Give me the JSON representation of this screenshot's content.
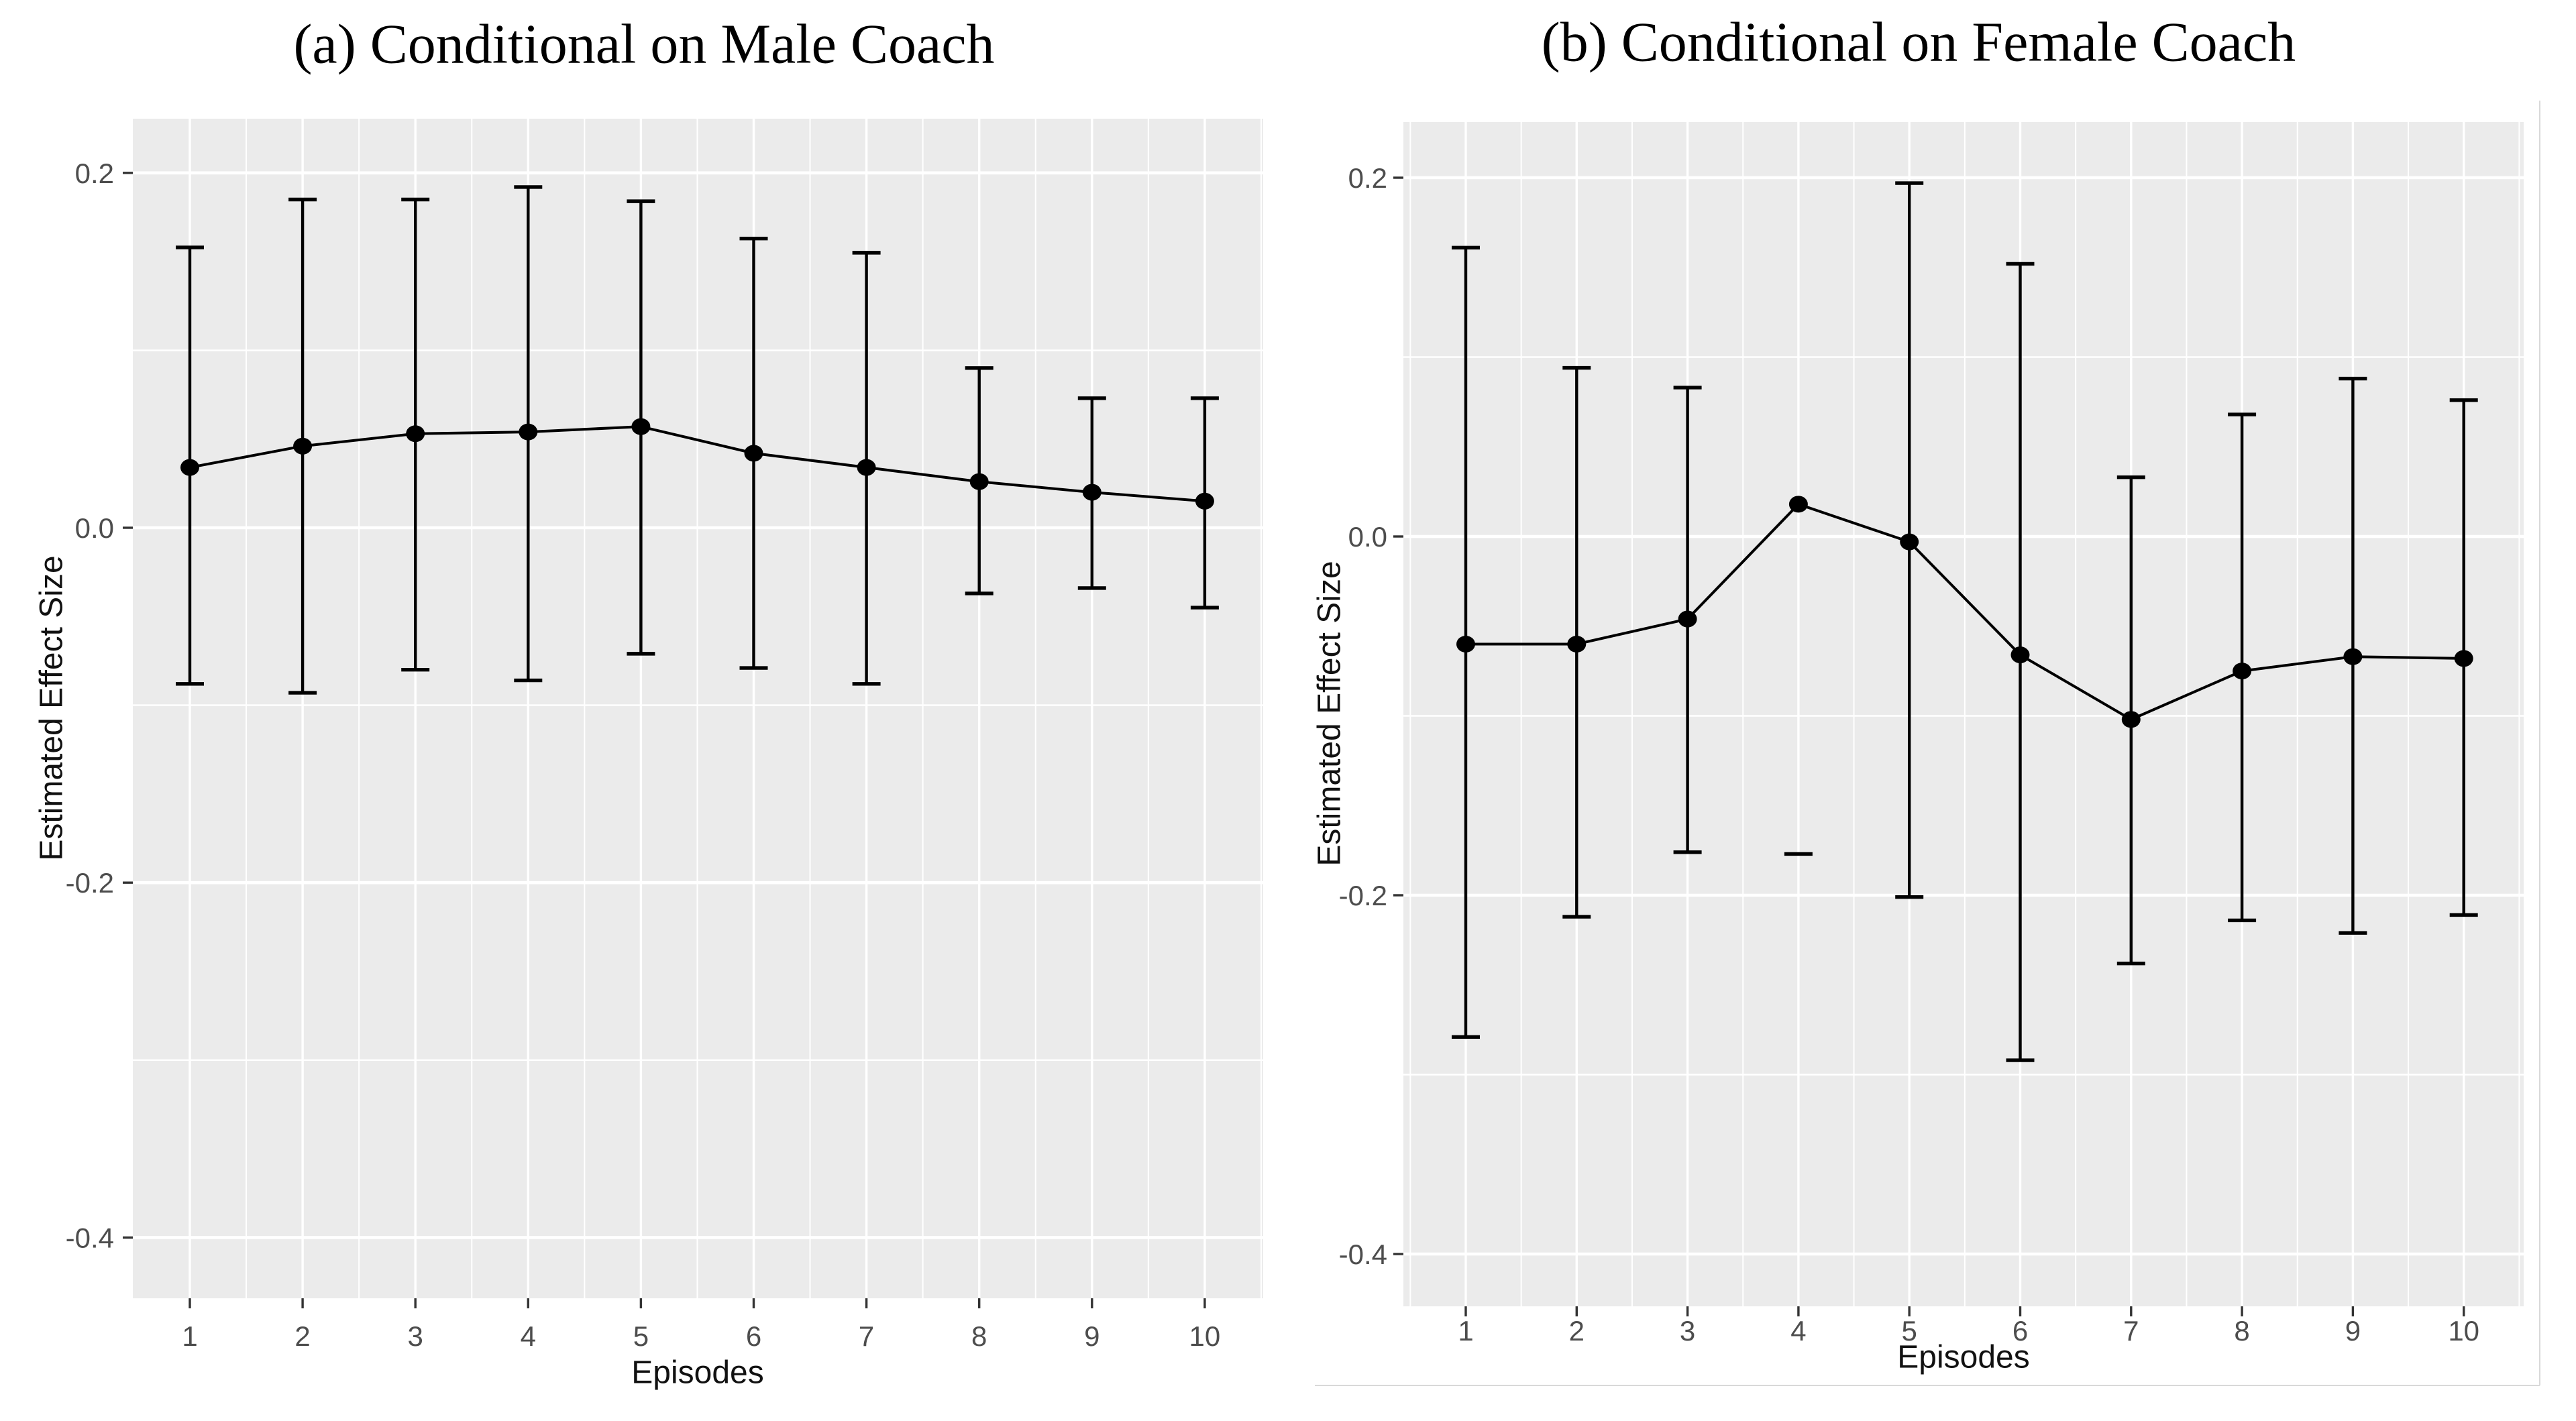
{
  "figure": {
    "background_color": "#FFFFFF",
    "panel_background_color": "#EBEBEB",
    "grid_color": "#FFFFFF",
    "data_color": "#000000",
    "tick_mark_color": "#333333",
    "tick_label_color": "#4D4D4D",
    "axis_title_color": "#111111",
    "title_color": "#000000",
    "frame_edge_color": "#D9D9D9"
  },
  "chart_data": [
    {
      "type": "line",
      "title": "(a) Conditional on Male Coach",
      "xlabel": "Episodes",
      "ylabel": "Estimated Effect Size",
      "x": [
        1,
        2,
        3,
        4,
        5,
        6,
        7,
        8,
        9,
        10
      ],
      "x_tick_labels": [
        "1",
        "2",
        "3",
        "4",
        "5",
        "6",
        "7",
        "8",
        "9",
        "10"
      ],
      "y_ticks": [
        0.2,
        0.0,
        -0.2,
        -0.4
      ],
      "y_tick_labels": [
        "0.2",
        "0.0",
        "-0.2",
        "-0.4"
      ],
      "y_minor_ticks": [
        0.1,
        -0.1,
        -0.3
      ],
      "ylim": [
        -0.43,
        0.22
      ],
      "grid": true,
      "legend": false,
      "marker": "point-with-error-bars",
      "series": [
        {
          "name": "estimated effect size",
          "values": [
            0.034,
            0.046,
            0.053,
            0.054,
            0.057,
            0.042,
            0.034,
            0.026,
            0.02,
            0.015
          ],
          "ci_upper": [
            0.158,
            0.185,
            0.185,
            0.192,
            0.184,
            0.163,
            0.155,
            0.09,
            0.073,
            0.073
          ],
          "ci_lower": [
            -0.088,
            -0.093,
            -0.08,
            -0.086,
            -0.071,
            -0.079,
            -0.088,
            -0.037,
            -0.034,
            -0.045
          ]
        }
      ],
      "annotations": []
    },
    {
      "type": "line",
      "title": "(b) Conditional on Female Coach",
      "xlabel": "Episodes",
      "ylabel": "Estimated Effect Size",
      "x": [
        1,
        2,
        3,
        4,
        5,
        6,
        7,
        8,
        9,
        10
      ],
      "x_tick_labels": [
        "1",
        "2",
        "3",
        "4",
        "5",
        "6",
        "7",
        "8",
        "9",
        "10"
      ],
      "y_ticks": [
        0.2,
        0.0,
        -0.2,
        -0.4
      ],
      "y_tick_labels": [
        "0.2",
        "0.0",
        "-0.2",
        "-0.4"
      ],
      "y_minor_ticks": [
        0.1,
        -0.1,
        -0.3
      ],
      "ylim": [
        -0.44,
        0.23
      ],
      "grid": true,
      "legend": false,
      "marker": "point-with-error-bars",
      "series": [
        {
          "name": "estimated effect size",
          "values": [
            -0.06,
            -0.06,
            -0.046,
            0.018,
            -0.003,
            -0.066,
            -0.102,
            -0.075,
            -0.067,
            -0.068
          ],
          "ci_upper": [
            0.161,
            0.094,
            0.083,
            null,
            0.197,
            0.152,
            0.033,
            0.068,
            0.088,
            0.076
          ],
          "ci_lower": [
            -0.279,
            -0.212,
            -0.176,
            null,
            -0.201,
            -0.292,
            -0.238,
            -0.214,
            -0.221,
            -0.211
          ]
        }
      ],
      "annotations": [
        {
          "type": "cap-only",
          "x": 4,
          "y": -0.177,
          "note": "isolated lower cap dash below episode 4, no vertical bar"
        }
      ]
    }
  ]
}
